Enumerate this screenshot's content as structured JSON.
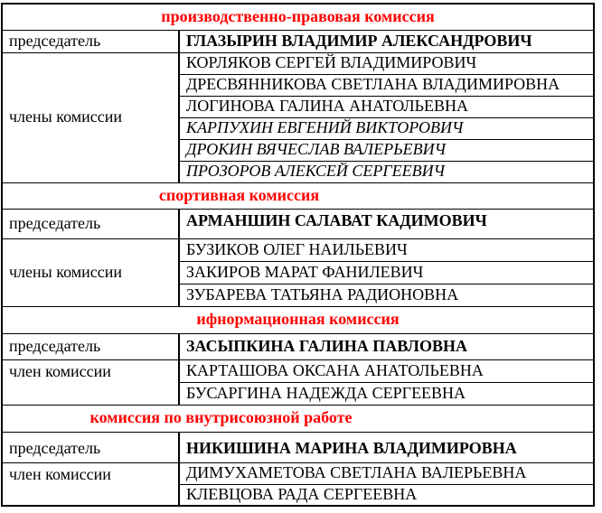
{
  "colors": {
    "section_title": "#ff0000",
    "text": "#000000",
    "border": "#000000",
    "background": "#ffffff"
  },
  "table": {
    "sections": [
      {
        "title": "производственно-правовая комиссия",
        "chairman_label": "председатель",
        "chairman_name": "ГЛАЗЫРИН ВЛАДИМИР АЛЕКСАНДРОВИЧ",
        "members_label": "члены комиссии",
        "members": [
          {
            "name": "КОРЛЯКОВ СЕРГЕЙ ВЛАДИМИРОВИЧ",
            "italic": false
          },
          {
            "name": "ДРЕСВЯННИКОВА СВЕТЛАНА ВЛАДИМИРОВНА",
            "italic": false
          },
          {
            "name": "ЛОГИНОВА ГАЛИНА АНАТОЛЬЕВНА",
            "italic": false
          },
          {
            "name": "КАРПУХИН ЕВГЕНИЙ ВИКТОРОВИЧ",
            "italic": true
          },
          {
            "name": "ДРОКИН ВЯЧЕСЛАВ ВАЛЕРЬЕВИЧ",
            "italic": true
          },
          {
            "name": "ПРОЗОРОВ АЛЕКСЕЙ СЕРГЕЕВИЧ",
            "italic": true
          }
        ]
      },
      {
        "title": "спортивная комиссия",
        "chairman_label": "председатель",
        "chairman_name": "АРМАНШИН САЛАВАТ КАДИМОВИЧ",
        "members_label": "члены комиссии",
        "members": [
          {
            "name": "БУЗИКОВ ОЛЕГ НАИЛЬЕВИЧ",
            "italic": false
          },
          {
            "name": "ЗАКИРОВ МАРАТ ФАНИЛЕВИЧ",
            "italic": false
          },
          {
            "name": "ЗУБАРЕВА ТАТЬЯНА РАДИОНОВНА",
            "italic": false
          }
        ]
      },
      {
        "title": "ифнормационная комиссия",
        "chairman_label": "председатель",
        "chairman_name": "ЗАСЫПКИНА ГАЛИНА ПАВЛОВНА",
        "members_label": "член комиссии",
        "members": [
          {
            "name": "КАРТАШОВА ОКСАНА АНАТОЛЬЕВНА",
            "italic": false
          },
          {
            "name": "БУСАРГИНА НАДЕЖДА СЕРГЕЕВНА",
            "italic": false
          }
        ]
      },
      {
        "title": "комиссия по внутрисоюзной работе",
        "chairman_label": "председатель",
        "chairman_name": "НИКИШИНА МАРИНА ВЛАДИМИРОВНА",
        "members_label": "член комиссии",
        "members": [
          {
            "name": "ДИМУХАМЕТОВА СВЕТЛАНА ВАЛЕРЬЕВНА",
            "italic": false
          },
          {
            "name": "КЛЕВЦОВА РАДА СЕРГЕЕВНА",
            "italic": false
          }
        ]
      }
    ]
  }
}
